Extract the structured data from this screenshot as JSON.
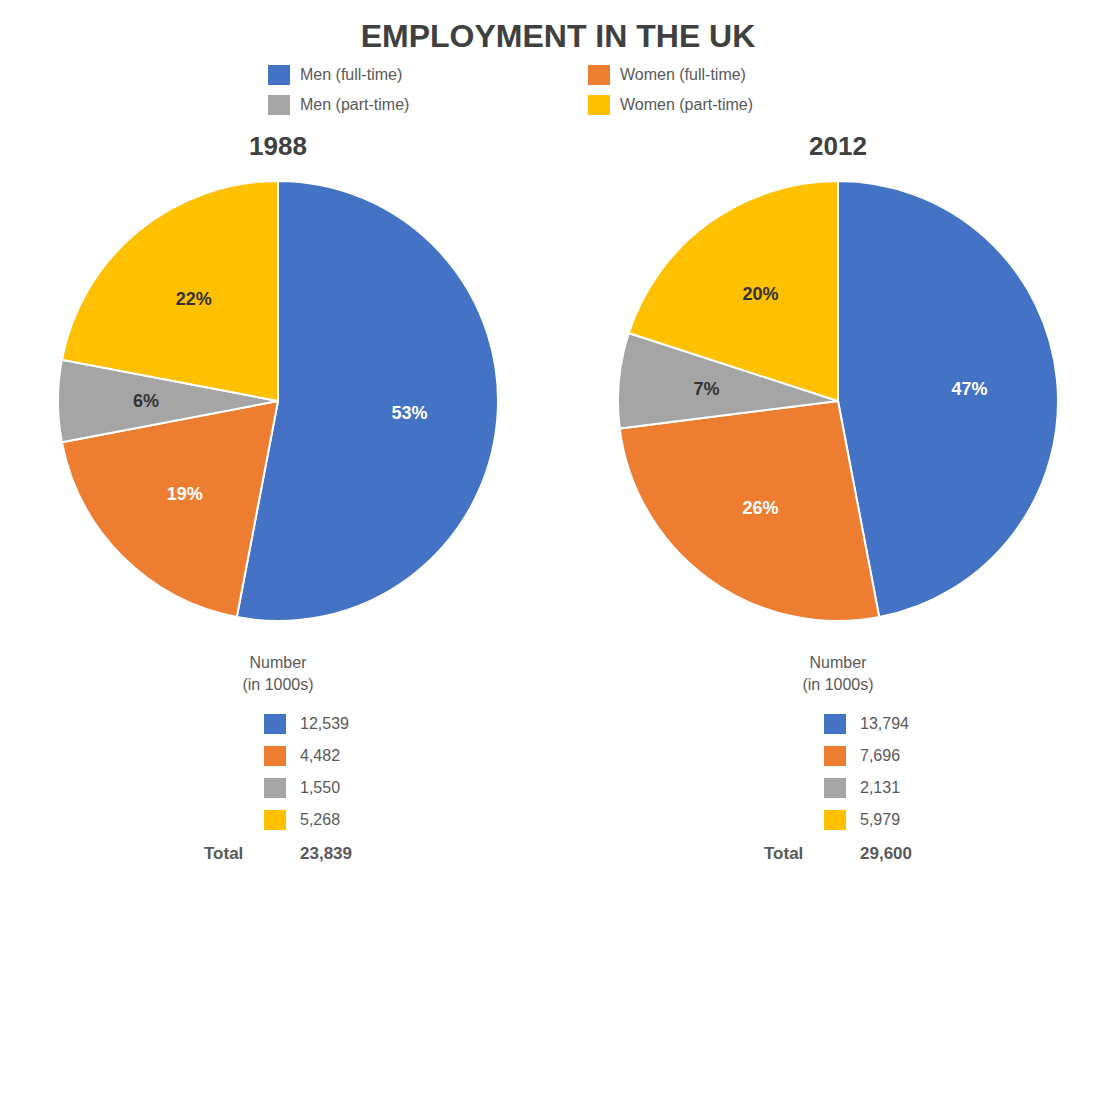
{
  "title": "EMPLOYMENT IN THE UK",
  "legend": "top",
  "chart_data": [
    {
      "type": "pie",
      "title": "1988",
      "categories": [
        "Men (full-time)",
        "Women (full-time)",
        "Men (part-time)",
        "Women (part-time)"
      ],
      "values": [
        53,
        19,
        6,
        22
      ],
      "value_labels": [
        "53%",
        "19%",
        "6%",
        "22%"
      ],
      "data_labels": true,
      "colors": [
        "#4472C4",
        "#ED7D31",
        "#A5A5A5",
        "#FFC000"
      ],
      "table_header": [
        "Number",
        "(in 1000s)"
      ],
      "numbers": [
        {
          "value": 12539,
          "label": "12,539"
        },
        {
          "value": 4482,
          "label": "4,482"
        },
        {
          "value": 1550,
          "label": "1,550"
        },
        {
          "value": 5268,
          "label": "5,268"
        }
      ],
      "total_label": "Total",
      "total": {
        "value": 23839,
        "label": "23,839"
      }
    },
    {
      "type": "pie",
      "title": "2012",
      "categories": [
        "Men (full-time)",
        "Women (full-time)",
        "Men (part-time)",
        "Women (part-time)"
      ],
      "values": [
        47,
        26,
        7,
        20
      ],
      "value_labels": [
        "47%",
        "26%",
        "7%",
        "20%"
      ],
      "data_labels": true,
      "colors": [
        "#4472C4",
        "#ED7D31",
        "#A5A5A5",
        "#FFC000"
      ],
      "table_header": [
        "Number",
        "(in 1000s)"
      ],
      "numbers": [
        {
          "value": 13794,
          "label": "13,794"
        },
        {
          "value": 7696,
          "label": "7,696"
        },
        {
          "value": 2131,
          "label": "2,131"
        },
        {
          "value": 5979,
          "label": "5,979"
        }
      ],
      "total_label": "Total",
      "total": {
        "value": 29600,
        "label": "29,600"
      }
    }
  ]
}
